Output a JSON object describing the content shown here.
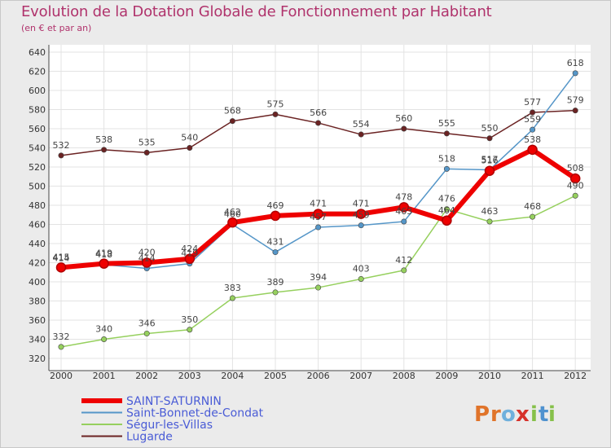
{
  "chart_data": {
    "type": "line",
    "title": "Evolution de la Dotation Globale de Fonctionnement par Habitant",
    "subtitle": "(en € et par an)",
    "xlabel": "",
    "ylabel": "",
    "ylim": [
      320,
      640
    ],
    "yticks": [
      320,
      340,
      360,
      380,
      400,
      420,
      440,
      460,
      480,
      500,
      520,
      540,
      560,
      580,
      600,
      620,
      640
    ],
    "categories": [
      "2000",
      "2001",
      "2002",
      "2003",
      "2004",
      "2005",
      "2006",
      "2007",
      "2008",
      "2009",
      "2010",
      "2011",
      "2012"
    ],
    "grid": true,
    "legend_position": "bottom-left",
    "series": [
      {
        "name": "Lugarde",
        "color": "#6b2323",
        "values": [
          532,
          538,
          535,
          540,
          568,
          575,
          566,
          554,
          560,
          555,
          550,
          577,
          579
        ]
      },
      {
        "name": "Ségur-les-Villas",
        "color": "#96d05e",
        "values": [
          332,
          340,
          346,
          350,
          383,
          389,
          394,
          403,
          412,
          476,
          463,
          468,
          490
        ]
      },
      {
        "name": "Saint-Bonnet-de-Condat",
        "color": "#5596c8",
        "values": [
          414,
          418,
          414,
          419,
          460,
          431,
          457,
          459,
          463,
          518,
          517,
          559,
          618
        ]
      },
      {
        "name": "SAINT-SATURNIN",
        "color": "#ee0000",
        "values": [
          415,
          419,
          420,
          424,
          462,
          469,
          471,
          471,
          478,
          464,
          516,
          538,
          508
        ]
      }
    ]
  },
  "legend": {
    "items": [
      {
        "name": "SAINT-SATURNIN",
        "color": "#ee0000"
      },
      {
        "name": "Saint-Bonnet-de-Condat",
        "color": "#5596c8"
      },
      {
        "name": "Ségur-les-Villas",
        "color": "#96d05e"
      },
      {
        "name": "Lugarde",
        "color": "#6b2323"
      }
    ]
  },
  "logo": {
    "text": "Proxiti",
    "letters": [
      {
        "ch": "P",
        "color": "#e0742a"
      },
      {
        "ch": "r",
        "color": "#e0742a"
      },
      {
        "ch": "o",
        "color": "#6fb0dc"
      },
      {
        "ch": "x",
        "color": "#d6312a"
      },
      {
        "ch": "i",
        "color": "#86c04a"
      },
      {
        "ch": "t",
        "color": "#4f92cf"
      },
      {
        "ch": "i",
        "color": "#86c04a"
      }
    ]
  }
}
